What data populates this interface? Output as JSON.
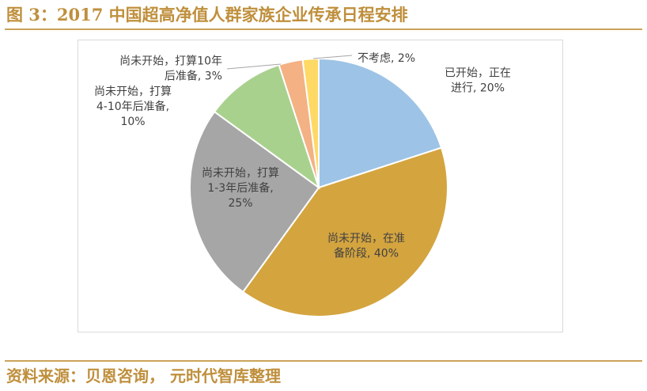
{
  "header": {
    "title": "图 3：2017 中国超高净值人群家族企业传承日程安排"
  },
  "footer": {
    "source": "资料来源：贝恩咨询， 元时代智库整理"
  },
  "colors": {
    "accent": "#bf8f3c",
    "rule": "#c9a35a"
  },
  "chart_data": {
    "type": "pie",
    "title": "",
    "slices": [
      {
        "label_lines": [
          "已开始，正在",
          "进行, 20%"
        ],
        "category": "已开始，正在进行",
        "value": 20,
        "color": "#9dc3e6"
      },
      {
        "label_lines": [
          "尚未开始，在准",
          "备阶段, 40%"
        ],
        "category": "尚未开始，在准备阶段",
        "value": 40,
        "color": "#d4a43f"
      },
      {
        "label_lines": [
          "尚未开始，打算",
          "1-3年后准备,",
          "25%"
        ],
        "category": "尚未开始，打算1-3年后准备",
        "value": 25,
        "color": "#a6a6a6"
      },
      {
        "label_lines": [
          "尚未开始，打算",
          "4-10年后准备,",
          "10%"
        ],
        "category": "尚未开始，打算4-10年后准备",
        "value": 10,
        "color": "#a9d18e"
      },
      {
        "label_lines": [
          "尚未开始，打算10年",
          "后准备, 3%"
        ],
        "category": "尚未开始，打算10年后准备",
        "value": 3,
        "color": "#f4b183"
      },
      {
        "label_lines": [
          "不考虑, 2%"
        ],
        "category": "不考虑",
        "value": 2,
        "color": "#ffd966"
      }
    ]
  }
}
